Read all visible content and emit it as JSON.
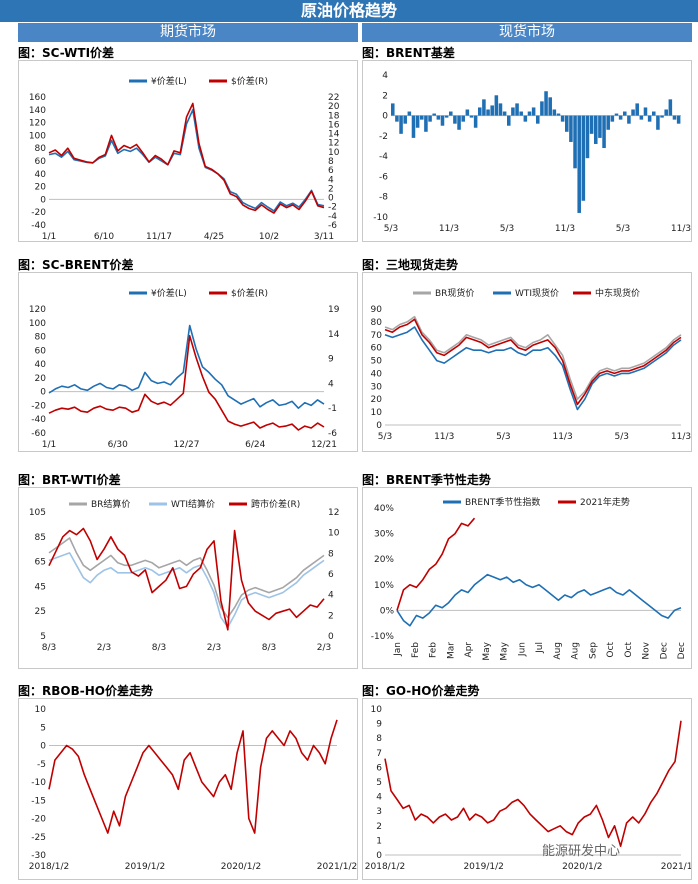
{
  "header": {
    "title": "原油价格趋势",
    "left_section": "期货市场",
    "right_section": "现货市场"
  },
  "colors": {
    "blue": "#1f6fb4",
    "red": "#c00000",
    "grey": "#a6a6a6",
    "lightblue": "#9dc3e6",
    "banner": "#2e75b6"
  },
  "watermark": "能源研发中心",
  "chart_data": [
    {
      "id": "sc_wti",
      "title": "图：SC-WTI价差",
      "type": "line",
      "legend": [
        "¥价差(L)",
        "$价差(R)"
      ],
      "xticks": [
        "1/1",
        "6/10",
        "11/17",
        "4/25",
        "10/2",
        "3/11"
      ],
      "yticks_left": [
        "160",
        "140",
        "120",
        "100",
        "80",
        "60",
        "40",
        "20",
        "0",
        "-20",
        "-40"
      ],
      "yticks_right": [
        "22",
        "20",
        "18",
        "16",
        "14",
        "12",
        "10",
        "8",
        "6",
        "4",
        "2",
        "0",
        "-2",
        "-4",
        "-6"
      ],
      "ylim_left": [
        -40,
        160
      ],
      "ylim_right": [
        -6,
        22
      ],
      "series": [
        {
          "name": "¥价差(L)",
          "axis": "left",
          "values": [
            70,
            72,
            66,
            75,
            62,
            60,
            58,
            57,
            64,
            68,
            92,
            72,
            78,
            75,
            80,
            70,
            58,
            66,
            60,
            54,
            72,
            70,
            118,
            140,
            80,
            50,
            46,
            40,
            32,
            12,
            8,
            -5,
            -10,
            -14,
            -5,
            -12,
            -18,
            -4,
            -10,
            -6,
            -12,
            0,
            14,
            -8,
            -10
          ]
        },
        {
          "name": "$价差(R)",
          "axis": "right",
          "values": [
            9.8,
            10.4,
            9.2,
            10.8,
            8.6,
            8.2,
            7.8,
            7.6,
            8.8,
            9.4,
            13.6,
            10.2,
            11.4,
            10.8,
            11.6,
            9.8,
            7.8,
            9.2,
            8.4,
            7.2,
            10.2,
            9.8,
            17.6,
            20.6,
            11.8,
            6.8,
            6.2,
            5.2,
            3.8,
            0.8,
            0.2,
            -1.6,
            -2.4,
            -2.8,
            -1.6,
            -2.6,
            -3.4,
            -1.4,
            -2.2,
            -1.6,
            -2.6,
            -0.8,
            1.4,
            -1.8,
            -2.2
          ]
        }
      ]
    },
    {
      "id": "brent_basis",
      "title": "图：BRENT基差",
      "type": "bar",
      "xticks": [
        "5/3",
        "11/3",
        "5/3",
        "11/3",
        "5/3",
        "11/3"
      ],
      "yticks": [
        "4",
        "2",
        "0",
        "-2",
        "-4",
        "-6",
        "-8",
        "-10"
      ],
      "ylim": [
        -10,
        4
      ],
      "values": [
        1.2,
        -0.6,
        -1.8,
        -0.8,
        0.4,
        -2.2,
        -1.2,
        -0.4,
        -1.6,
        -0.6,
        0.2,
        -0.4,
        -1.0,
        -0.2,
        0.4,
        -0.8,
        -1.4,
        -0.6,
        0.6,
        -0.2,
        -1.2,
        0.8,
        1.6,
        0.6,
        1.0,
        2.0,
        1.2,
        0.4,
        -1.0,
        0.8,
        1.2,
        0.4,
        -0.6,
        0.4,
        0.8,
        -0.8,
        1.4,
        2.4,
        1.8,
        0.6,
        0.2,
        -0.6,
        -1.6,
        -2.6,
        -5.2,
        -9.6,
        -8.4,
        -4.2,
        -1.8,
        -2.8,
        -2.2,
        -3.2,
        -1.4,
        -0.6,
        0.2,
        -0.4,
        0.4,
        -0.8,
        0.6,
        1.2,
        -0.4,
        0.8,
        -0.6,
        0.4,
        -1.4,
        -0.2,
        0.6,
        1.6,
        -0.4,
        -0.8
      ]
    },
    {
      "id": "sc_brent",
      "title": "图：SC-BRENT价差",
      "type": "line",
      "legend": [
        "¥价差(L)",
        "$价差(R)"
      ],
      "xticks": [
        "1/1",
        "6/30",
        "12/27",
        "6/24",
        "12/21"
      ],
      "yticks_left": [
        "120",
        "100",
        "80",
        "60",
        "40",
        "20",
        "0",
        "-20",
        "-40",
        "-60"
      ],
      "yticks_right": [
        "19",
        "14",
        "9",
        "4",
        "-1",
        "-6"
      ],
      "ylim_left": [
        -60,
        120
      ],
      "ylim_right": [
        -6,
        19
      ],
      "series": [
        {
          "name": "¥价差(L)",
          "axis": "left",
          "values": [
            -2,
            4,
            8,
            6,
            10,
            4,
            2,
            8,
            12,
            6,
            4,
            10,
            8,
            2,
            6,
            28,
            16,
            12,
            14,
            10,
            20,
            28,
            96,
            62,
            36,
            28,
            18,
            10,
            -6,
            -12,
            -18,
            -14,
            -10,
            -22,
            -16,
            -12,
            -20,
            -18,
            -14,
            -24,
            -16,
            -20,
            -12,
            -18
          ]
        },
        {
          "name": "$价差(R)",
          "axis": "right",
          "values": [
            -2.0,
            -1.4,
            -1.0,
            -1.2,
            -0.8,
            -1.6,
            -1.8,
            -1.0,
            -0.6,
            -1.2,
            -1.4,
            -0.8,
            -1.0,
            -1.8,
            -1.4,
            1.8,
            0.4,
            -0.2,
            0.2,
            -0.4,
            0.8,
            2.0,
            13.6,
            9.2,
            5.4,
            2.2,
            0.8,
            -1.4,
            -3.6,
            -4.2,
            -4.6,
            -4.2,
            -3.8,
            -5.0,
            -4.4,
            -4.0,
            -4.8,
            -4.6,
            -4.2,
            -5.4,
            -4.6,
            -5.0,
            -4.0,
            -4.8
          ]
        }
      ]
    },
    {
      "id": "spot3",
      "title": "图：三地现货走势",
      "type": "line",
      "legend": [
        "BR现货价",
        "WTI现货价",
        "中东现货价"
      ],
      "xticks": [
        "5/3",
        "11/3",
        "5/3",
        "11/3",
        "5/3",
        "11/3"
      ],
      "yticks": [
        "90",
        "80",
        "70",
        "60",
        "50",
        "40",
        "30",
        "20",
        "10",
        "0"
      ],
      "ylim": [
        0,
        90
      ],
      "series": [
        {
          "name": "BR现货价",
          "values": [
            76,
            74,
            78,
            80,
            84,
            72,
            66,
            58,
            56,
            60,
            64,
            70,
            68,
            66,
            62,
            64,
            66,
            68,
            62,
            60,
            64,
            66,
            70,
            62,
            54,
            36,
            20,
            26,
            36,
            42,
            44,
            42,
            44,
            44,
            46,
            48,
            52,
            56,
            60,
            66,
            70
          ]
        },
        {
          "name": "WTI现货价",
          "values": [
            70,
            68,
            70,
            72,
            76,
            66,
            58,
            50,
            48,
            52,
            56,
            60,
            58,
            58,
            56,
            58,
            58,
            60,
            56,
            54,
            58,
            58,
            60,
            54,
            46,
            28,
            12,
            20,
            32,
            38,
            40,
            38,
            40,
            40,
            42,
            44,
            48,
            52,
            56,
            62,
            66
          ]
        },
        {
          "name": "中东现货价",
          "values": [
            74,
            72,
            76,
            78,
            82,
            70,
            64,
            56,
            54,
            58,
            62,
            68,
            66,
            64,
            60,
            62,
            64,
            66,
            60,
            58,
            62,
            64,
            66,
            60,
            50,
            32,
            16,
            24,
            34,
            40,
            42,
            40,
            42,
            42,
            44,
            46,
            50,
            54,
            58,
            64,
            68
          ]
        }
      ]
    },
    {
      "id": "brt_wti",
      "title": "图：BRT-WTI价差",
      "type": "line",
      "legend": [
        "BR结算价",
        "WTI结算价",
        "跨市价差(R)"
      ],
      "xticks": [
        "8/3",
        "2/3",
        "8/3",
        "2/3",
        "8/3",
        "2/3"
      ],
      "yticks_left": [
        "105",
        "85",
        "65",
        "45",
        "25",
        "5"
      ],
      "yticks_right": [
        "12",
        "10",
        "8",
        "6",
        "4",
        "2",
        "0"
      ],
      "ylim_left": [
        5,
        105
      ],
      "ylim_right": [
        0,
        12
      ],
      "series": [
        {
          "name": "BR结算价",
          "axis": "left",
          "values": [
            72,
            76,
            80,
            84,
            72,
            62,
            58,
            62,
            66,
            70,
            64,
            62,
            62,
            64,
            66,
            64,
            60,
            62,
            64,
            66,
            62,
            66,
            68,
            58,
            46,
            28,
            20,
            28,
            38,
            42,
            44,
            42,
            40,
            42,
            44,
            48,
            52,
            58,
            62,
            66,
            70
          ]
        },
        {
          "name": "WTI结算价",
          "axis": "left",
          "values": [
            66,
            68,
            70,
            72,
            62,
            52,
            48,
            54,
            58,
            60,
            56,
            56,
            56,
            58,
            60,
            58,
            54,
            56,
            58,
            60,
            56,
            60,
            62,
            52,
            40,
            20,
            12,
            22,
            34,
            38,
            40,
            38,
            36,
            38,
            40,
            44,
            48,
            54,
            58,
            62,
            66
          ]
        },
        {
          "name": "跨市价差(R)",
          "axis": "right",
          "values": [
            6.8,
            8.2,
            9.6,
            10.2,
            9.8,
            10.4,
            9.2,
            7.4,
            8.4,
            9.6,
            8.4,
            7.8,
            6.2,
            5.8,
            6.4,
            4.2,
            4.8,
            5.4,
            6.6,
            4.6,
            4.8,
            6.0,
            6.6,
            8.4,
            9.2,
            3.4,
            0.6,
            10.2,
            5.4,
            3.2,
            2.4,
            2.0,
            1.6,
            2.2,
            2.4,
            2.6,
            1.8,
            2.4,
            3.0,
            2.8,
            3.6
          ]
        }
      ]
    },
    {
      "id": "brent_season",
      "title": "图：BRENT季节性走势",
      "type": "line",
      "legend": [
        "BRENT季节性指数",
        "2021年走势"
      ],
      "xticks": [
        "Jan",
        "Feb",
        "Feb",
        "Mar",
        "Apr",
        "May",
        "May",
        "Jun",
        "Jul",
        "Aug",
        "Aug",
        "Sep",
        "Oct",
        "Oct",
        "Nov",
        "Dec",
        "Dec"
      ],
      "yticks": [
        "40%",
        "30%",
        "20%",
        "10%",
        "0%",
        "-10%"
      ],
      "ylim": [
        -10,
        40
      ],
      "series": [
        {
          "name": "BRENT季节性指数",
          "values": [
            0,
            -4,
            -6,
            -2,
            -3,
            -1,
            2,
            1,
            3,
            6,
            8,
            7,
            10,
            12,
            14,
            13,
            12,
            13,
            11,
            12,
            10,
            9,
            10,
            8,
            6,
            4,
            6,
            5,
            7,
            8,
            6,
            7,
            8,
            9,
            7,
            6,
            8,
            6,
            4,
            2,
            0,
            -2,
            -3,
            0,
            1
          ]
        },
        {
          "name": "2021年走势",
          "values": [
            0,
            8,
            10,
            9,
            12,
            16,
            18,
            22,
            28,
            30,
            34,
            33,
            36
          ]
        }
      ]
    },
    {
      "id": "rbob_ho",
      "title": "图：RBOB-HO价差走势",
      "type": "line",
      "xticks": [
        "2018/1/2",
        "2019/1/2",
        "2020/1/2",
        "2021/1/2"
      ],
      "yticks": [
        "10",
        "5",
        "0",
        "-5",
        "-10",
        "-15",
        "-20",
        "-25",
        "-30"
      ],
      "ylim": [
        -30,
        10
      ],
      "series": [
        {
          "name": "",
          "values": [
            -12,
            -4,
            -2,
            0,
            -1,
            -3,
            -8,
            -12,
            -16,
            -20,
            -24,
            -18,
            -22,
            -14,
            -10,
            -6,
            -2,
            0,
            -2,
            -4,
            -6,
            -8,
            -12,
            -4,
            -2,
            -6,
            -10,
            -12,
            -14,
            -10,
            -8,
            -12,
            -2,
            4,
            -20,
            -24,
            -6,
            2,
            4,
            2,
            0,
            4,
            2,
            -2,
            -4,
            0,
            -2,
            -5,
            2,
            7
          ]
        }
      ]
    },
    {
      "id": "go_ho",
      "title": "图：GO-HO价差走势",
      "type": "line",
      "xticks": [
        "2018/1/2",
        "2019/1/2",
        "2020/1/2",
        "2021/1/2"
      ],
      "yticks": [
        "10",
        "9",
        "8",
        "7",
        "6",
        "5",
        "4",
        "3",
        "2",
        "1",
        "0"
      ],
      "ylim": [
        0,
        10
      ],
      "series": [
        {
          "name": "",
          "values": [
            6.6,
            4.4,
            3.8,
            3.2,
            3.4,
            2.4,
            2.8,
            2.6,
            2.2,
            2.6,
            2.8,
            2.4,
            2.6,
            3.2,
            2.4,
            2.8,
            2.6,
            2.2,
            2.4,
            3.0,
            3.2,
            3.6,
            3.8,
            3.4,
            2.8,
            2.4,
            2.0,
            1.6,
            1.8,
            2.0,
            1.6,
            1.4,
            2.2,
            2.6,
            2.8,
            3.4,
            2.4,
            1.2,
            2.0,
            0.6,
            2.2,
            2.6,
            2.2,
            2.8,
            3.6,
            4.2,
            5.0,
            5.8,
            6.4,
            9.2
          ]
        }
      ]
    }
  ]
}
